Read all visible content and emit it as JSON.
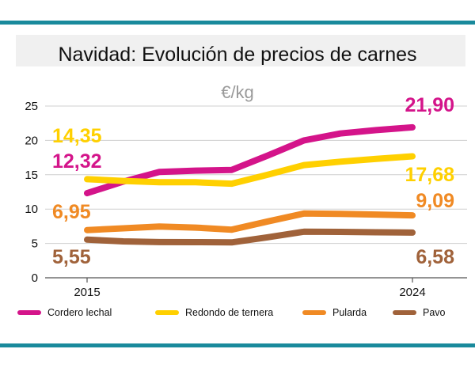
{
  "chart_data": {
    "type": "line",
    "title": "Navidad: Evolución de precios de carnes",
    "unit_label": "€/kg",
    "ylim": [
      0,
      25
    ],
    "yticks": [
      0,
      5,
      10,
      15,
      20,
      25
    ],
    "x": [
      2015,
      2016,
      2017,
      2018,
      2019,
      2020,
      2021,
      2022,
      2023,
      2024
    ],
    "x_tick_labels": [
      {
        "x": 2015,
        "label": "2015"
      },
      {
        "x": 2024,
        "label": "2024"
      }
    ],
    "series": [
      {
        "name": "Cordero lechal",
        "color": "#d4148a",
        "points": [
          [
            2015,
            12.32
          ],
          [
            2016,
            14.0
          ],
          [
            2017,
            15.4
          ],
          [
            2018,
            15.6
          ],
          [
            2019,
            15.7
          ],
          [
            2020,
            17.8
          ],
          [
            2021,
            20.0
          ],
          [
            2022,
            21.0
          ],
          [
            2023,
            21.5
          ],
          [
            2024,
            21.9
          ]
        ],
        "start_label": "12,32",
        "end_label": "21,90"
      },
      {
        "name": "Redondo de ternera",
        "color": "#ffd000",
        "points": [
          [
            2015,
            14.35
          ],
          [
            2016,
            14.1
          ],
          [
            2017,
            13.9
          ],
          [
            2018,
            13.9
          ],
          [
            2019,
            13.7
          ],
          [
            2020,
            15.0
          ],
          [
            2021,
            16.4
          ],
          [
            2022,
            16.9
          ],
          [
            2023,
            17.3
          ],
          [
            2024,
            17.68
          ]
        ],
        "start_label": "14,35",
        "end_label": "17,68"
      },
      {
        "name": "Pularda",
        "color": "#f08a24",
        "points": [
          [
            2015,
            6.95
          ],
          [
            2016,
            7.2
          ],
          [
            2017,
            7.45
          ],
          [
            2018,
            7.3
          ],
          [
            2019,
            7.0
          ],
          [
            2020,
            8.2
          ],
          [
            2021,
            9.35
          ],
          [
            2022,
            9.3
          ],
          [
            2023,
            9.2
          ],
          [
            2024,
            9.09
          ]
        ],
        "start_label": "6,95",
        "end_label": "9,09"
      },
      {
        "name": "Pavo",
        "color": "#a0623a",
        "points": [
          [
            2015,
            5.55
          ],
          [
            2016,
            5.3
          ],
          [
            2017,
            5.2
          ],
          [
            2018,
            5.18
          ],
          [
            2019,
            5.15
          ],
          [
            2020,
            5.9
          ],
          [
            2021,
            6.7
          ],
          [
            2022,
            6.68
          ],
          [
            2023,
            6.62
          ],
          [
            2024,
            6.58
          ]
        ],
        "start_label": "5,55",
        "end_label": "6,58"
      }
    ],
    "legend_position": "bottom"
  }
}
